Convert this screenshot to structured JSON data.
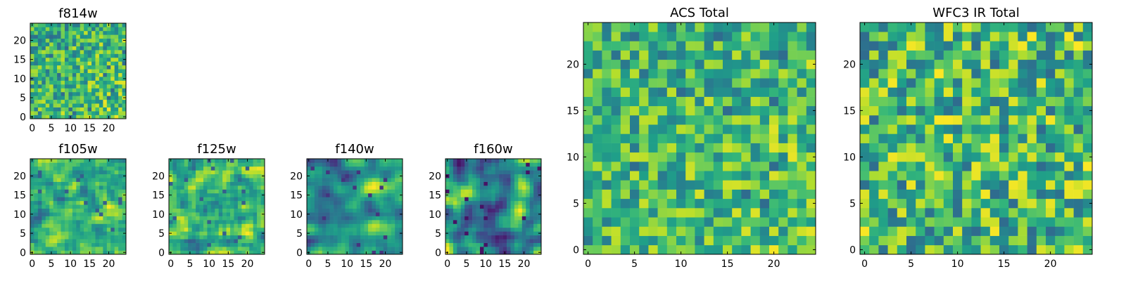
{
  "figure": {
    "description": "Grid of heatmap panels of per-filter pixel maps and combined totals"
  },
  "chart_data": [
    {
      "id": "f814w",
      "type": "heatmap",
      "title": "f814w",
      "grid_size": 25,
      "colormap": "viridis",
      "seed": 814,
      "smooth": 0,
      "value_range": [
        0.35,
        1.0
      ],
      "xticks": [
        "0",
        "5",
        "10",
        "15",
        "20"
      ],
      "yticks": [
        "0",
        "5",
        "10",
        "15",
        "20"
      ],
      "xlim": [
        -0.5,
        24.5
      ],
      "ylim": [
        -0.5,
        24.5
      ],
      "trend": "brighter toward lower-right"
    },
    {
      "id": "f105w",
      "type": "heatmap",
      "title": "f105w",
      "grid_size": 25,
      "colormap": "viridis",
      "seed": 105,
      "smooth": 1,
      "value_range": [
        0.3,
        1.0
      ],
      "xticks": [
        "0",
        "5",
        "10",
        "15",
        "20"
      ],
      "yticks": [
        "0",
        "5",
        "10",
        "15",
        "20"
      ],
      "xlim": [
        -0.5,
        24.5
      ],
      "ylim": [
        -0.5,
        24.5
      ]
    },
    {
      "id": "f125w",
      "type": "heatmap",
      "title": "f125w",
      "grid_size": 25,
      "colormap": "viridis",
      "seed": 125,
      "smooth": 1,
      "value_range": [
        0.3,
        1.0
      ],
      "xticks": [
        "0",
        "5",
        "10",
        "15",
        "20"
      ],
      "yticks": [
        "0",
        "5",
        "10",
        "15",
        "20"
      ],
      "xlim": [
        -0.5,
        24.5
      ],
      "ylim": [
        -0.5,
        24.5
      ]
    },
    {
      "id": "f140w",
      "type": "heatmap",
      "title": "f140w",
      "grid_size": 25,
      "colormap": "viridis",
      "seed": 140,
      "smooth": 2,
      "value_range": [
        0.15,
        1.0
      ],
      "xticks": [
        "0",
        "5",
        "10",
        "15",
        "20"
      ],
      "yticks": [
        "0",
        "5",
        "10",
        "15",
        "20"
      ],
      "xlim": [
        -0.5,
        24.5
      ],
      "ylim": [
        -0.5,
        24.5
      ]
    },
    {
      "id": "f160w",
      "type": "heatmap",
      "title": "f160w",
      "grid_size": 25,
      "colormap": "viridis",
      "seed": 160,
      "smooth": 2,
      "value_range": [
        0.05,
        1.0
      ],
      "xticks": [
        "0",
        "5",
        "10",
        "15",
        "20"
      ],
      "yticks": [
        "0",
        "5",
        "10",
        "15",
        "20"
      ],
      "xlim": [
        -0.5,
        24.5
      ],
      "ylim": [
        -0.5,
        24.5
      ]
    },
    {
      "id": "acs_total",
      "type": "heatmap",
      "title": "ACS Total",
      "grid_size": 25,
      "colormap": "viridis",
      "seed": 9001,
      "smooth": 0,
      "value_range": [
        0.35,
        1.0
      ],
      "xticks": [
        "0",
        "5",
        "10",
        "15",
        "20"
      ],
      "yticks": [
        "0",
        "5",
        "10",
        "15",
        "20"
      ],
      "xlim": [
        -0.5,
        24.5
      ],
      "ylim": [
        -0.5,
        24.5
      ],
      "trend": "brighter toward lower-right"
    },
    {
      "id": "wfc3_ir_total",
      "type": "heatmap",
      "title": "WFC3 IR Total",
      "grid_size": 25,
      "colormap": "viridis",
      "seed": 3301,
      "smooth": 0,
      "value_range": [
        0.35,
        1.0
      ],
      "xticks": [
        "0",
        "5",
        "10",
        "15",
        "20"
      ],
      "yticks": [
        "0",
        "5",
        "10",
        "15",
        "20"
      ],
      "xlim": [
        -0.5,
        24.5
      ],
      "ylim": [
        -0.5,
        24.5
      ]
    }
  ]
}
